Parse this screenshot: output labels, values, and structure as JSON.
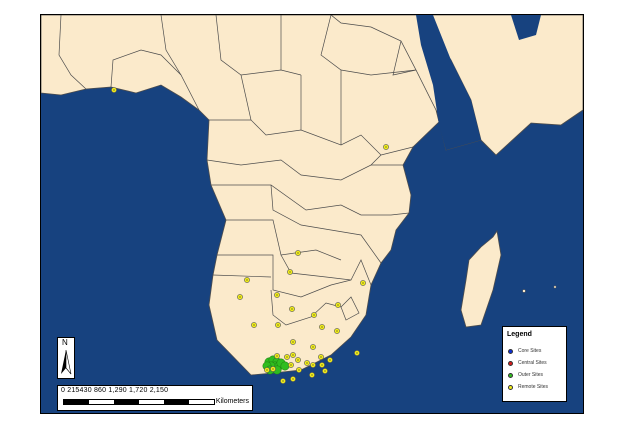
{
  "map": {
    "ocean_color": "#17427f",
    "land_color": "#fbeacb",
    "border_color": "#4d4d4d"
  },
  "legend": {
    "title": "Legend",
    "items": [
      {
        "label": "Core Sites",
        "color": "#0b2fd8"
      },
      {
        "label": "Central Sites",
        "color": "#d81c1c"
      },
      {
        "label": "Outer Sites",
        "color": "#2fbd1f"
      },
      {
        "label": "Remote Sites",
        "color": "#f2ee1a"
      }
    ]
  },
  "north_arrow": {
    "label": "N"
  },
  "scale": {
    "ticks_text": "0  215430    860    1,290  1,720  2,150",
    "units": "Kilometers"
  }
}
